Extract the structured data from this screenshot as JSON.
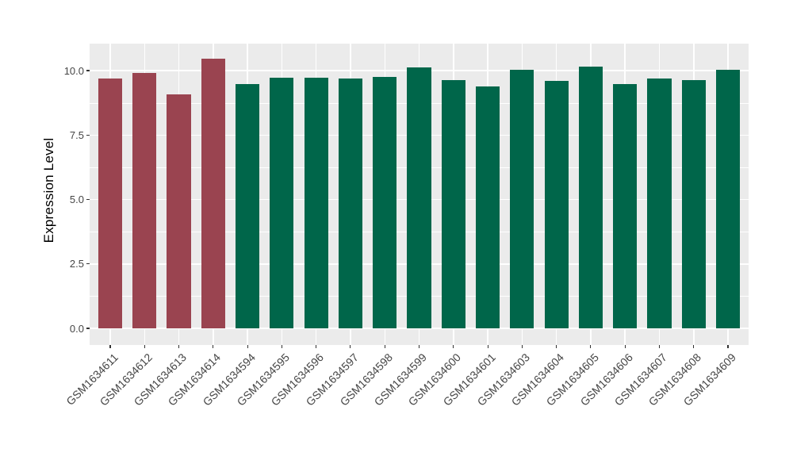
{
  "figure": {
    "background": "#ffffff",
    "panel_background": "#ebebeb",
    "gridline_color": "#ffffff",
    "axis_text_color": "#454545",
    "tick_mark_color": "#333333"
  },
  "chart_data": {
    "type": "bar",
    "title": "",
    "xlabel": "",
    "ylabel": "Expression Level",
    "categories": [
      "GSM1634611",
      "GSM1634612",
      "GSM1634613",
      "GSM1634614",
      "GSM1634594",
      "GSM1634595",
      "GSM1634596",
      "GSM1634597",
      "GSM1634598",
      "GSM1634599",
      "GSM1634600",
      "GSM1634601",
      "GSM1634603",
      "GSM1634604",
      "GSM1634605",
      "GSM1634606",
      "GSM1634607",
      "GSM1634608",
      "GSM1634609"
    ],
    "values": [
      9.69,
      9.91,
      9.08,
      10.46,
      9.48,
      9.73,
      9.72,
      9.69,
      9.75,
      10.11,
      9.64,
      9.38,
      10.03,
      9.61,
      10.15,
      9.47,
      9.69,
      9.64,
      10.02
    ],
    "groups": [
      "group1",
      "group1",
      "group1",
      "group1",
      "group2",
      "group2",
      "group2",
      "group2",
      "group2",
      "group2",
      "group2",
      "group2",
      "group2",
      "group2",
      "group2",
      "group2",
      "group2",
      "group2",
      "group2"
    ],
    "group_colors": {
      "group1": "#9A4450",
      "group2": "#00664A"
    },
    "y_ticks": [
      0,
      2.5,
      5,
      7.5,
      10
    ],
    "y_tick_labels": [
      "0.0",
      "2.5",
      "5.0",
      "7.5",
      "10.0"
    ],
    "ylim": [
      -0.65,
      11.05
    ],
    "grid": true,
    "legend": "none"
  }
}
